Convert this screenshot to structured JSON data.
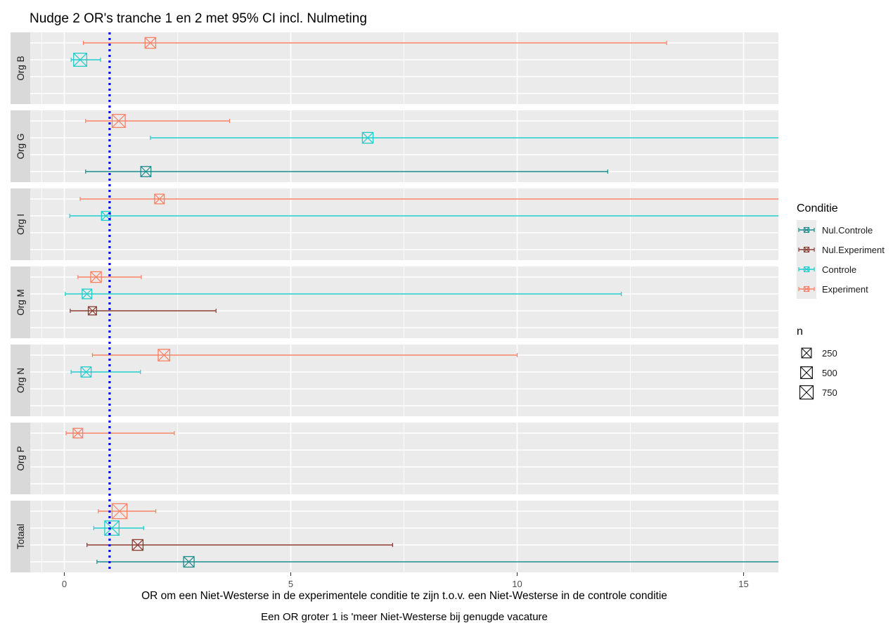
{
  "chart_data": {
    "type": "errorbar",
    "title": "Nudge 2 OR's tranche 1 en 2 met 95% CI incl. Nulmeting",
    "xlabel": "OR om een Niet-Westerse in de experimentele conditie te zijn t.o.v. een Niet-Westerse in de controle conditie",
    "caption": "Een OR groter 1 is 'meer Niet-Westerse bij genugde vacature",
    "xlim": [
      -0.75,
      15.8
    ],
    "xticks": [
      0,
      5,
      10,
      15
    ],
    "xtick_labels": [
      "0",
      "5",
      "10",
      "15"
    ],
    "reference_line": 1,
    "panels": [
      "Org B",
      "Org G",
      "Org I",
      "Org M",
      "Org N",
      "Org P",
      "Totaal"
    ],
    "series": [
      {
        "name": "Nul.Controle",
        "color": "#1a8c8c"
      },
      {
        "name": "Nul.Experiment",
        "color": "#8b3a30"
      },
      {
        "name": "Controle",
        "color": "#1ecccc"
      },
      {
        "name": "Experiment",
        "color": "#fa8064"
      }
    ],
    "points": [
      {
        "panel": "Org B",
        "series": "Experiment",
        "or": 1.9,
        "lo": 0.42,
        "hi": 13.3,
        "n": 300
      },
      {
        "panel": "Org B",
        "series": "Controle",
        "or": 0.35,
        "lo": 0.15,
        "hi": 0.8,
        "n": 600
      },
      {
        "panel": "Org G",
        "series": "Experiment",
        "or": 1.2,
        "lo": 0.47,
        "hi": 3.65,
        "n": 600
      },
      {
        "panel": "Org G",
        "series": "Controle",
        "or": 6.7,
        "lo": 1.9,
        "hi": 18.0,
        "n": 300
      },
      {
        "panel": "Org G",
        "series": "Nul.Controle",
        "or": 1.8,
        "lo": 0.47,
        "hi": 12.0,
        "n": 250
      },
      {
        "panel": "Org I",
        "series": "Experiment",
        "or": 2.1,
        "lo": 0.35,
        "hi": 20.0,
        "n": 200
      },
      {
        "panel": "Org I",
        "series": "Controle",
        "or": 0.92,
        "lo": 0.12,
        "hi": 25.0,
        "n": 150
      },
      {
        "panel": "Org M",
        "series": "Experiment",
        "or": 0.7,
        "lo": 0.3,
        "hi": 1.7,
        "n": 300
      },
      {
        "panel": "Org M",
        "series": "Controle",
        "or": 0.5,
        "lo": 0.02,
        "hi": 12.3,
        "n": 200
      },
      {
        "panel": "Org M",
        "series": "Nul.Experiment",
        "or": 0.62,
        "lo": 0.13,
        "hi": 3.35,
        "n": 100
      },
      {
        "panel": "Org N",
        "series": "Experiment",
        "or": 2.2,
        "lo": 0.62,
        "hi": 10.0,
        "n": 400
      },
      {
        "panel": "Org N",
        "series": "Controle",
        "or": 0.48,
        "lo": 0.15,
        "hi": 1.68,
        "n": 250
      },
      {
        "panel": "Org P",
        "series": "Experiment",
        "or": 0.3,
        "lo": 0.04,
        "hi": 2.43,
        "n": 200
      },
      {
        "panel": "Totaal",
        "series": "Experiment",
        "or": 1.22,
        "lo": 0.75,
        "hi": 2.02,
        "n": 900
      },
      {
        "panel": "Totaal",
        "series": "Controle",
        "or": 1.05,
        "lo": 0.65,
        "hi": 1.75,
        "n": 800
      },
      {
        "panel": "Totaal",
        "series": "Nul.Experiment",
        "or": 1.62,
        "lo": 0.5,
        "hi": 7.25,
        "n": 300
      },
      {
        "panel": "Totaal",
        "series": "Nul.Controle",
        "or": 2.75,
        "lo": 0.72,
        "hi": 30.0,
        "n": 280
      }
    ],
    "legend_color": {
      "title": "Conditie",
      "placement": "right",
      "entries": [
        "Nul.Controle",
        "Nul.Experiment",
        "Controle",
        "Experiment"
      ]
    },
    "legend_size": {
      "title": "n",
      "placement": "right",
      "entries": [
        {
          "label": "250",
          "value": 250
        },
        {
          "label": "500",
          "value": 500
        },
        {
          "label": "750",
          "value": 750
        }
      ]
    }
  }
}
